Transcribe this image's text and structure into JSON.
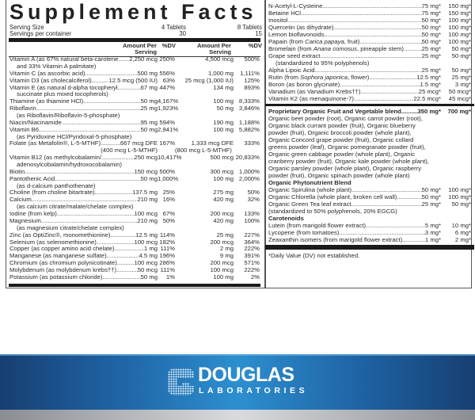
{
  "title": "Supplement Facts",
  "serving": {
    "size_label": "Serving Size",
    "size_1": "4 Tablets",
    "size_2": "8 Tablets",
    "per_container_label": "Servings per container",
    "per_container_1": "30",
    "per_container_2": "15"
  },
  "headers": {
    "amount_1": "Amount Per Serving",
    "dv_1": "%DV",
    "amount_2": "Amount Per Serving",
    "dv_2": "%DV"
  },
  "left_entries": [
    {
      "name": "Vitamin A (as 67% natural beta-carotene",
      "sep": "..",
      "amount": "2,250 mcg",
      "dv": "250%",
      "amount2": "4,500 mcg",
      "dv2": "500%",
      "cont": [
        "and 33% Vitamin A palmitate)"
      ]
    },
    {
      "name": "Vitamin C (as ascorbic acid)",
      "amount": "500 mg",
      "dv": "556%",
      "amount2": "1,000 mg",
      "dv2": "1,111%"
    },
    {
      "name": "Vitamin D3 (as cholecalciferol)",
      "amount": "12.5 mcg (500 IU)",
      "dv": "63%",
      "amount2": "25 mcg (1,000 IU)",
      "dv2": "125%"
    },
    {
      "name": "Vitamin E (as natural d-alpha tocopheryl",
      "amount": "67 mg",
      "dv": "447%",
      "amount2": "134 mg",
      "dv2": "893%",
      "cont": [
        "succinate plus mixed tocopherols)"
      ]
    },
    {
      "name": "Thiamine (as thiamine HCl)",
      "amount": "50 mg",
      "dv": "4,167%",
      "amount2": "100 mg",
      "dv2": "8,333%"
    },
    {
      "name": "Riboflavin",
      "amount": "25 mg",
      "dv": "1,923%",
      "amount2": "50 mg",
      "dv2": "3,846%",
      "cont": [
        "(as Riboflavin/Riboflavin-5-phosphate)"
      ]
    },
    {
      "name": "Niacin/Niacinamide",
      "amount": "95 mg",
      "dv": "594%",
      "amount2": "190 mg",
      "dv2": "1,188%"
    },
    {
      "name": "Vitamin B6",
      "amount": "50 mg",
      "dv": "2,941%",
      "amount2": "100 mg",
      "dv2": "5,882%",
      "cont": [
        "(as Pyridoxine HCl/Pyridoxal-5-phosphate)"
      ]
    },
    {
      "name": "Folate (as Metafolin®, L-5-MTHF)",
      "amount": "667 mcg DFE",
      "dv": "167%",
      "amount2": "1,333 mcg DFE",
      "dv2": "333%",
      "note": "(400 mcg L-5-MTHF)",
      "note2": "(800 mcg L-5-MTHF)"
    },
    {
      "name": "Vitamin B12 (as methylcobalamin/",
      "amount": "250 mcg",
      "dv": "10,417%",
      "amount2": "500 mcg",
      "dv2": "20,833%",
      "cont": [
        "adenosylcobalamin/hydroxocobalamin)"
      ]
    },
    {
      "name": "Biotin",
      "amount": "150 mcg",
      "dv": "500%",
      "amount2": "300 mcg",
      "dv2": "1,000%"
    },
    {
      "name": "Pantothenic Acid",
      "amount": "50 mg",
      "dv": "1,000%",
      "amount2": "100 mg",
      "dv2": "2,000%",
      "cont": [
        "(as d-calcium panthothenate)"
      ]
    },
    {
      "name": "Choline (from choline bitartrate)",
      "amount": "137.5 mg",
      "dv": "25%",
      "amount2": "275 mg",
      "dv2": "50%"
    },
    {
      "name": "Calcium",
      "amount": "210 mg",
      "dv": "16%",
      "amount2": "420 mg",
      "dv2": "32%",
      "cont": [
        "(as calcium citrate/malate/chelate complex)"
      ]
    },
    {
      "name": "Iodine (from kelp)",
      "amount": "100 mcg",
      "dv": "67%",
      "amount2": "200 mcg",
      "dv2": "133%"
    },
    {
      "name": "Magnesium",
      "amount": "210 mg",
      "dv": "50%",
      "amount2": "420 mg",
      "dv2": "100%",
      "cont": [
        "(as magnesium citrate/chelate complex)"
      ]
    },
    {
      "name": "Zinc (as OptiZinc®, monomethionine)",
      "amount": "12.5 mg",
      "dv": "114%",
      "amount2": "25 mg",
      "dv2": "227%"
    },
    {
      "name": "Selenium (as selenomethionine)",
      "amount": "100 mcg",
      "dv": "182%",
      "amount2": "200 mcg",
      "dv2": "364%"
    },
    {
      "name": "Copper (as copper amino acid chelate)",
      "amount": "1 mg",
      "dv": "111%",
      "amount2": "2 mg",
      "dv2": "222%"
    },
    {
      "name": "Manganese (as manganese sulfate)",
      "amount": "4.5 mg",
      "dv": "196%",
      "amount2": "9 mg",
      "dv2": "391%"
    },
    {
      "name": "Chromium (as chromium polynicotinate)",
      "amount": "100 mcg",
      "dv": "286%",
      "amount2": "200 mcg",
      "dv2": "571%"
    },
    {
      "name": "Molybdenum (as molybdenum krebs††)",
      "amount": "50 mcg",
      "dv": "111%",
      "amount2": "100 mcg",
      "dv2": "222%"
    },
    {
      "name": "Potassium (as potassium chloride)",
      "amount": "50 mg",
      "dv": "1%",
      "amount2": "100 mg",
      "dv2": "2%"
    }
  ],
  "right_entries": [
    {
      "name": "N-Acetyl-L-Cysteine",
      "amount": "75 mg*",
      "amount2": "150 mg*"
    },
    {
      "name": "Betaine HCl",
      "amount": "75 mg*",
      "amount2": "150 mg*"
    },
    {
      "name": "Inositol",
      "amount": "50 mg*",
      "amount2": "100 mg*"
    },
    {
      "name": "Quercetin (as dihydrate)",
      "amount": "50 mg*",
      "amount2": "100 mg*"
    },
    {
      "name": "Lemon bioflavonoids",
      "amount": "50 mg*",
      "amount2": "100 mg*"
    },
    {
      "name": "Papain (from Carica papaya, fruit)",
      "italic": "Carica papaya",
      "amount": "50 mg*",
      "amount2": "100 mg*"
    },
    {
      "name": "Bromelain (from Anana comosus, pineapple stem)",
      "italic": "Anana comosus",
      "amount": "25 mg*",
      "amount2": "50 mg*"
    },
    {
      "name": "Grape seed extract",
      "amount": "25 mg*",
      "amount2": "50 mg*",
      "cont": [
        "(standardized to 95% polyphenols)"
      ]
    },
    {
      "name": "Alpha Lipoic Acid",
      "amount": "25 mg*",
      "amount2": "50 mg*"
    },
    {
      "name": "Rutin (from Sophora japonica, flower)",
      "italic": "Sophora japonica",
      "amount": "12.5 mg*",
      "amount2": "25 mg*"
    },
    {
      "name": "Boron (as boron glycinate)",
      "amount": "1.5 mg*",
      "amount2": "3 mg*"
    },
    {
      "name": "Vanadium (as Vanadium Krebs††)",
      "amount": "25 mcg*",
      "amount2": "50 mcg*"
    },
    {
      "name": "Vitamin K2 (as menaquinone-7)",
      "amount": "22.5 mcg*",
      "amount2": "45 mcg*"
    }
  ],
  "proprietary": {
    "name": "Proprietary Organic Fruit and Vegetable blend",
    "amount": "350 mg*",
    "amount2": "700 mg*",
    "lines": [
      "Organic beet powder (root), Organic carrot powder (root),",
      "Organic black currant powder (fruit), Organic blueberry",
      "powder (fruit), Organic broccoli powder (whole plant),",
      "Organic Concord grape powder (fruit), Organic collard",
      "greens powder (leaf), Organic pomegranate powder (fruit),",
      "Organic green cabbage powder (whole plant), Organic",
      "cranberry powder (fruit), Organic kale powder (whole plant),",
      "Organic parsley powder (whole plant), Organic raspberry",
      "powder (fruit), Organic spinach powder (whole plant)"
    ]
  },
  "phytonutrient": {
    "heading": "Organic Phytonutrient Blend",
    "entries": [
      {
        "name": "Organic Spirulina (whole plant)",
        "amount": "50 mg*",
        "amount2": "100 mg*"
      },
      {
        "name": "Organic Chlorella (whole plant, broken cell wall)",
        "amount": "50 mg*",
        "amount2": "100 mg*"
      },
      {
        "name": "Organic Green Tea leaf extract",
        "amount": "25 mg*",
        "amount2": "50 mg*",
        "cont": [
          "(standardized to 50% polyphenols, 20% EGCG)"
        ],
        "noindent": true
      }
    ]
  },
  "carotenoids": {
    "heading": "Carotenoids",
    "entries": [
      {
        "name": "Lutein (from marigold flower extract)",
        "amount": "5 mg*",
        "amount2": "10 mg*"
      },
      {
        "name": "Lycopene (from tomatoes)",
        "amount": "3 mg*",
        "amount2": "6 mg*"
      },
      {
        "name": "Zeaxanthin isomers (from marigold flower extract)",
        "amount": "1 mg*",
        "amount2": "2 mg*"
      }
    ]
  },
  "footnote": "*Daily Value (DV) not established.",
  "brand": {
    "name": "DOUGLAS",
    "subtitle": "LABORATORIES"
  },
  "colors": {
    "band_blue": "#2d8fcf",
    "band_dark": "#173f72",
    "text": "#2a2a2a"
  }
}
